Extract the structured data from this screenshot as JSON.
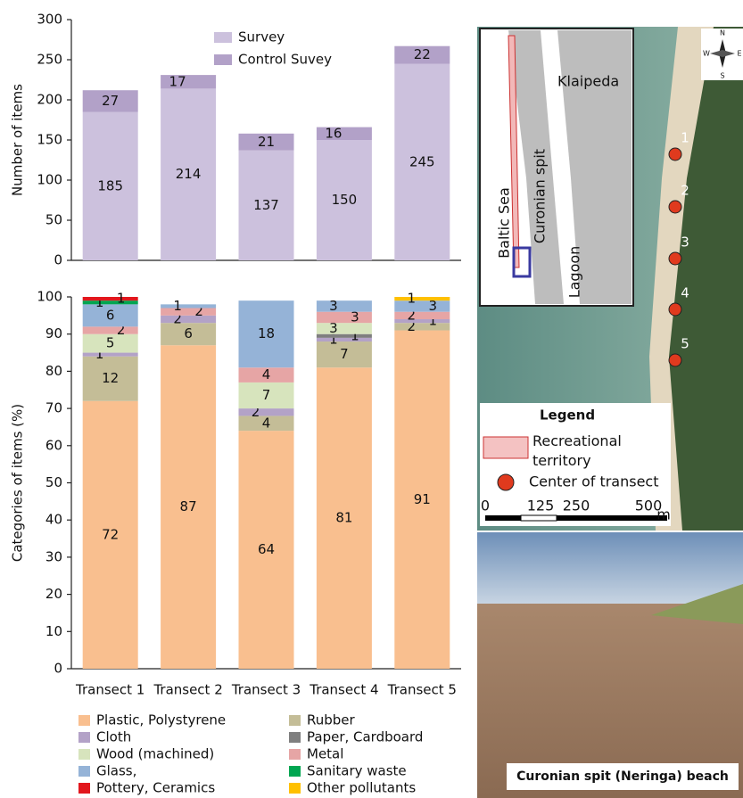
{
  "chart_data": [
    {
      "type": "bar",
      "stacked": true,
      "y_label": "Number of items",
      "series": [
        {
          "name": "Survey",
          "color": "#ccc1dd",
          "values": [
            185,
            214,
            137,
            150,
            245
          ]
        },
        {
          "name": "Control Suvey",
          "color": "#b2a1c8",
          "values": [
            27,
            17,
            21,
            16,
            22
          ]
        }
      ],
      "ylim": [
        0,
        300
      ],
      "yticks": [
        0,
        50,
        100,
        150,
        200,
        250,
        300
      ],
      "grid": false,
      "legend": "upper-center"
    },
    {
      "type": "bar",
      "stacked": true,
      "y_label": "Categories of items (%)",
      "categories": [
        "Transect 1",
        "Transect 2",
        "Transect 3",
        "Transect 4",
        "Transect 5"
      ],
      "series": [
        {
          "name": "Plastic, Polystyrene",
          "color": "#f9bf8f",
          "values": [
            72,
            87,
            64,
            81,
            91
          ]
        },
        {
          "name": "Rubber",
          "color": "#c4bd97",
          "values": [
            12,
            6,
            4,
            7,
            2
          ]
        },
        {
          "name": "Cloth",
          "color": "#b3a2c7",
          "values": [
            1,
            2,
            2,
            1,
            1
          ]
        },
        {
          "name": "Paper, Cardboard",
          "color": "#7f7f7f",
          "values": [
            0,
            0,
            0,
            1,
            0
          ]
        },
        {
          "name": "Wood (machined)",
          "color": "#d7e4bd",
          "values": [
            5,
            0,
            7,
            3,
            0
          ]
        },
        {
          "name": "Metal",
          "color": "#e6a5a5",
          "values": [
            2,
            2,
            4,
            3,
            2
          ]
        },
        {
          "name": "Glass,",
          "color": "#95b3d7",
          "values": [
            6,
            1,
            18,
            3,
            3
          ]
        },
        {
          "name": "Sanitary waste",
          "color": "#00a651",
          "values": [
            1,
            0,
            0,
            0,
            0
          ]
        },
        {
          "name": "Pottery, Ceramics",
          "color": "#e2171d",
          "values": [
            1,
            0,
            0,
            0,
            0
          ]
        },
        {
          "name": "Other pollutants",
          "color": "#ffc000",
          "values": [
            0,
            0,
            0,
            0,
            1
          ]
        }
      ],
      "ylim": [
        0,
        100
      ],
      "yticks": [
        0,
        10,
        20,
        30,
        40,
        50,
        60,
        70,
        80,
        90,
        100
      ],
      "grid": false,
      "legend": "below"
    }
  ],
  "map": {
    "inset_labels": [
      "Klaipeda",
      "Baltic Sea",
      "Curonian spit",
      "Lagoon"
    ],
    "compass": [
      "N",
      "W",
      "E",
      "S"
    ],
    "transects": [
      "1",
      "2",
      "3",
      "4",
      "5"
    ],
    "legend": {
      "title": "Legend",
      "items": [
        "Recreational territory",
        "Center of transect"
      ]
    },
    "scale": [
      "0",
      "125",
      "250",
      "500",
      "m"
    ],
    "photo_caption": "Curonian spit (Neringa) beach"
  }
}
